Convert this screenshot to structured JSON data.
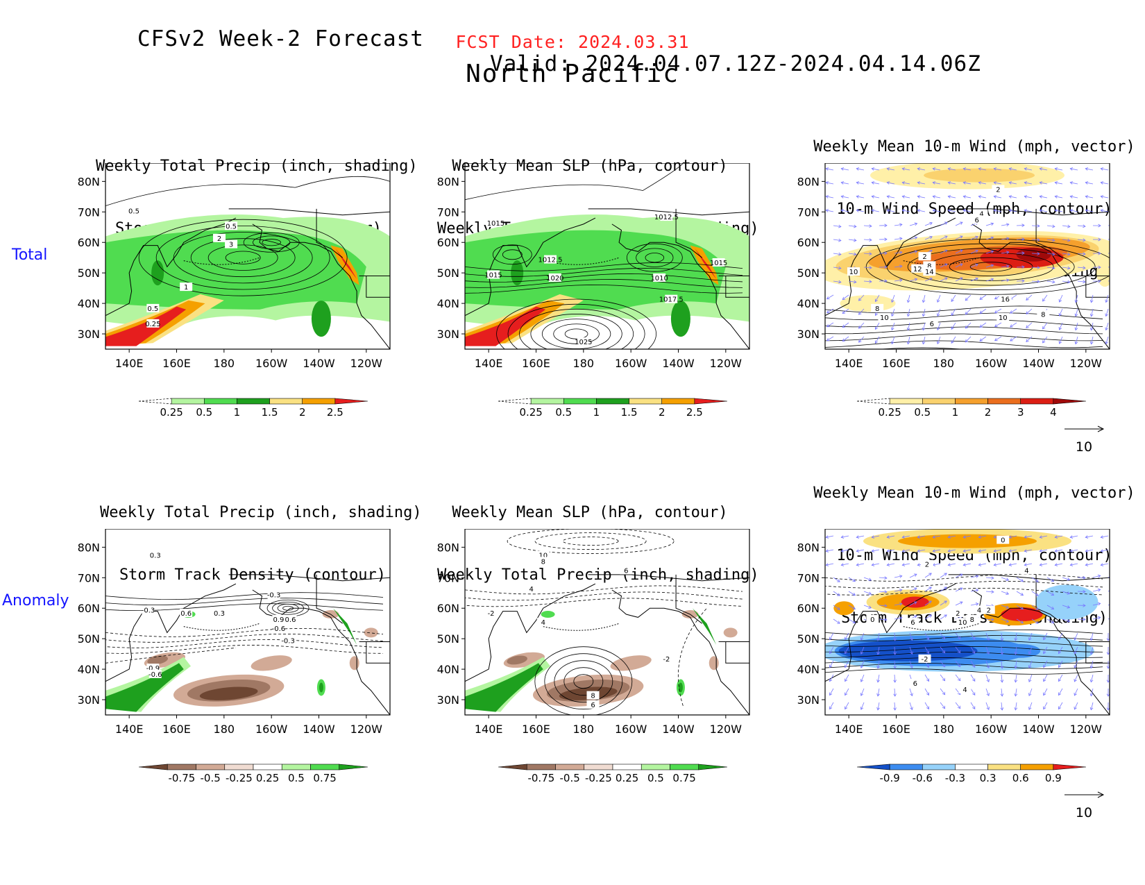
{
  "header": {
    "model_title": "CFSv2 Week-2 Forecast",
    "valid": "Valid: 2024.04.07.12Z-2024.04.14.06Z",
    "fcst_date": "FCST Date: 2024.03.31",
    "region": "North Pacific"
  },
  "row_labels": {
    "total": "Total",
    "anomaly": "Anomaly"
  },
  "panel_titles": {
    "precip_storm": [
      "Weekly Total Precip (inch, shading)",
      "Storm Track Density (contour)"
    ],
    "slp_precip": [
      "Weekly Mean SLP (hPa, contour)",
      "Weekly Total Precip (inch, shading)"
    ],
    "wind_storm": [
      "Weekly Mean 10-m Wind (mph, vector)",
      "10-m Wind Speed (mph, contour)",
      "Storm Track Density (shading)"
    ]
  },
  "axes": {
    "lat_labels": [
      "80N",
      "70N",
      "60N",
      "50N",
      "40N",
      "30N"
    ],
    "lon_labels": [
      "140E",
      "160E",
      "180",
      "160W",
      "140W",
      "120W"
    ]
  },
  "colorbars": {
    "total_precip": {
      "labels": [
        "0.25",
        "0.5",
        "1",
        "1.5",
        "2",
        "2.5"
      ],
      "colors": [
        "#ffffff",
        "#b4f5a0",
        "#50dc50",
        "#1ea01e",
        "#fae182",
        "#f5a000",
        "#e61e1e"
      ]
    },
    "total_storm": {
      "labels": [
        "0.25",
        "0.5",
        "1",
        "2",
        "3",
        "4"
      ],
      "colors": [
        "#ffffff",
        "#fff0a8",
        "#fad26e",
        "#f5a02d",
        "#eb6e1e",
        "#dc1e14",
        "#a00a0a"
      ]
    },
    "anom_precip": {
      "labels": [
        "-0.75",
        "-0.5",
        "-0.25",
        "0.25",
        "0.5",
        "0.75"
      ],
      "colors": [
        "#6e4632",
        "#a07864",
        "#d2aa96",
        "#f0dcd2",
        "#ffffff",
        "#b4f5a0",
        "#50dc50",
        "#1ea01e"
      ]
    },
    "anom_storm": {
      "labels": [
        "-0.9",
        "-0.6",
        "-0.3",
        "0.3",
        "0.6",
        "0.9"
      ],
      "colors": [
        "#1450c8",
        "#3c8cf0",
        "#96d2fa",
        "#ffffff",
        "#fae182",
        "#f5a000",
        "#e61e1e"
      ]
    }
  },
  "vector_ref": "10",
  "contour_labels": {
    "total_precip": [
      "0.5",
      "2",
      "3",
      "1",
      "0.5",
      "0.25",
      "0.5"
    ],
    "total_slp": [
      "1015",
      "1012.5",
      "1012.5",
      "1015",
      "1020",
      "1010",
      "1015",
      "1017.5",
      "1025"
    ],
    "total_wind": [
      "2",
      "4",
      "6",
      "2",
      "8",
      "12",
      "14",
      "10",
      "16",
      "8",
      "10",
      "6",
      "10",
      "8"
    ],
    "anom_precip": [
      "0.3",
      "-0.3",
      "-0.3",
      "0.6",
      "0.3",
      "0.9",
      "0.6",
      "-0.6",
      "-0.3",
      "-0.9",
      "-0.6"
    ],
    "anom_slp": [
      "10",
      "8",
      "6",
      "4",
      "-2",
      "4",
      "-2",
      "8",
      "6"
    ],
    "anom_wind": [
      "0",
      "2",
      "4",
      "0",
      "2",
      "4",
      "2",
      "8",
      "10",
      "6",
      "-2",
      "6",
      "4"
    ]
  }
}
